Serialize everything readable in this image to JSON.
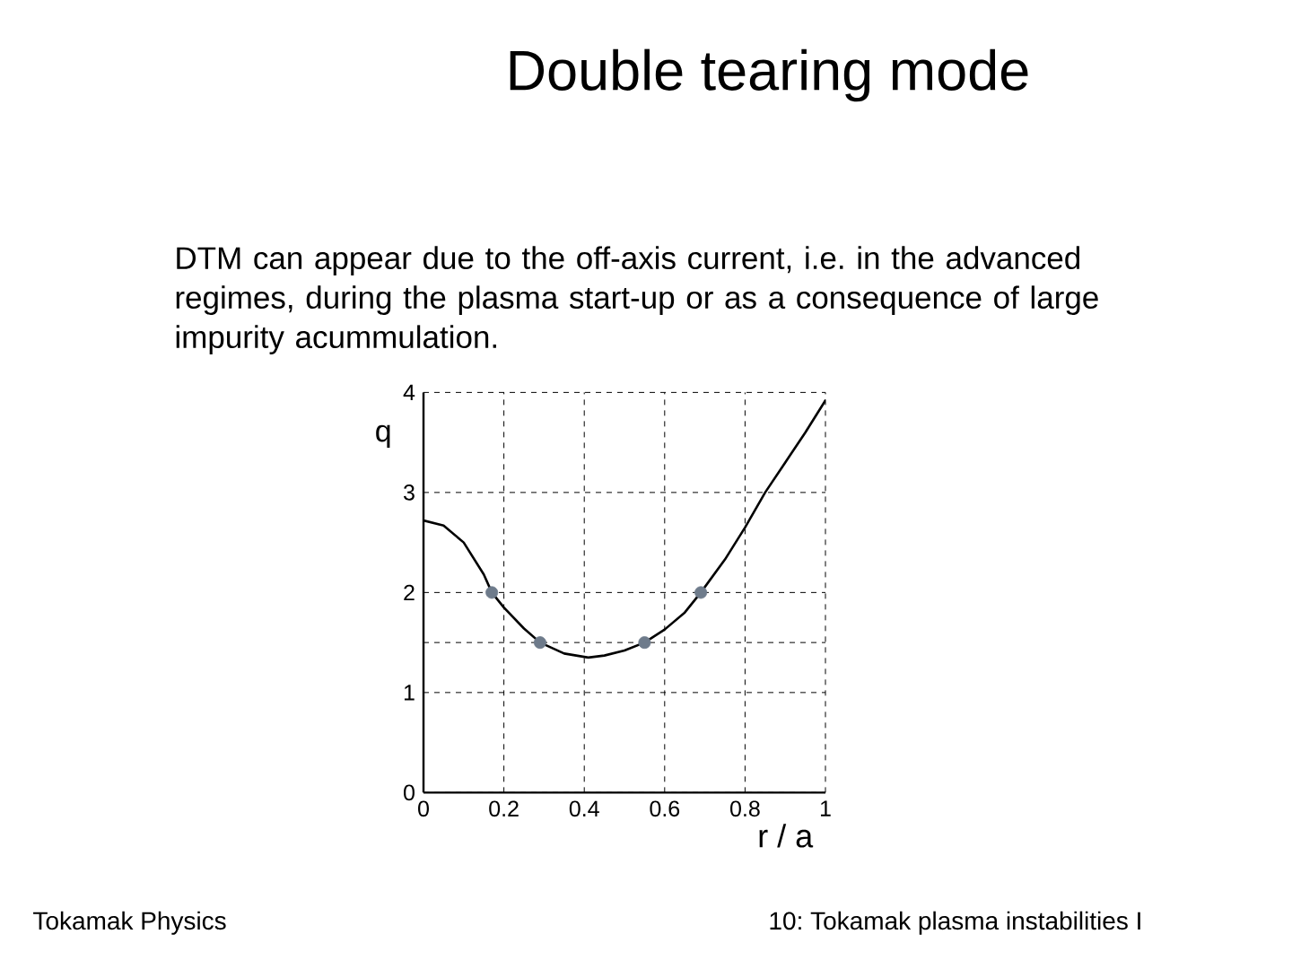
{
  "chart_data": {
    "type": "line",
    "title": "Double tearing mode",
    "subtitle": "DTM can appear due to the off-axis current, i.e. in the advanced regimes, during the plasma start-up or as a consequence of large impurity acummulation.",
    "xlabel": "r / a",
    "ylabel": "q",
    "annotations": [
      "Tokamak Physics",
      "10: Tokamak plasma instabilities I"
    ],
    "series": [
      {
        "color": "#000000",
        "x": [
          0,
          0.05,
          0.1,
          0.15,
          0.17,
          0.2,
          0.25,
          0.29,
          0.35,
          0.41,
          0.45,
          0.5,
          0.55,
          0.6,
          0.65,
          0.69,
          0.75,
          0.8,
          0.85,
          0.9,
          0.95,
          1
        ],
        "values": [
          2.72,
          2.67,
          2.5,
          2.18,
          2.0,
          1.85,
          1.64,
          1.5,
          1.39,
          1.35,
          1.37,
          1.42,
          1.5,
          1.63,
          1.8,
          2.0,
          2.33,
          2.65,
          3.0,
          3.3,
          3.6,
          3.92
        ]
      },
      {
        "type": "scatter",
        "color": "#6e7b8b",
        "marker": "circle",
        "x": [
          0.17,
          0.29,
          0.55,
          0.69
        ],
        "values": [
          2,
          1.5,
          1.5,
          2
        ]
      }
    ],
    "xlim": [
      0,
      1
    ],
    "ylim": [
      0,
      4
    ],
    "xticks": [
      0,
      0.2,
      0.4,
      0.6,
      0.8,
      1
    ],
    "yticks": [
      0,
      1,
      {
        "value": 1.5,
        "label": null
      },
      2,
      3,
      4
    ],
    "grid": true
  }
}
